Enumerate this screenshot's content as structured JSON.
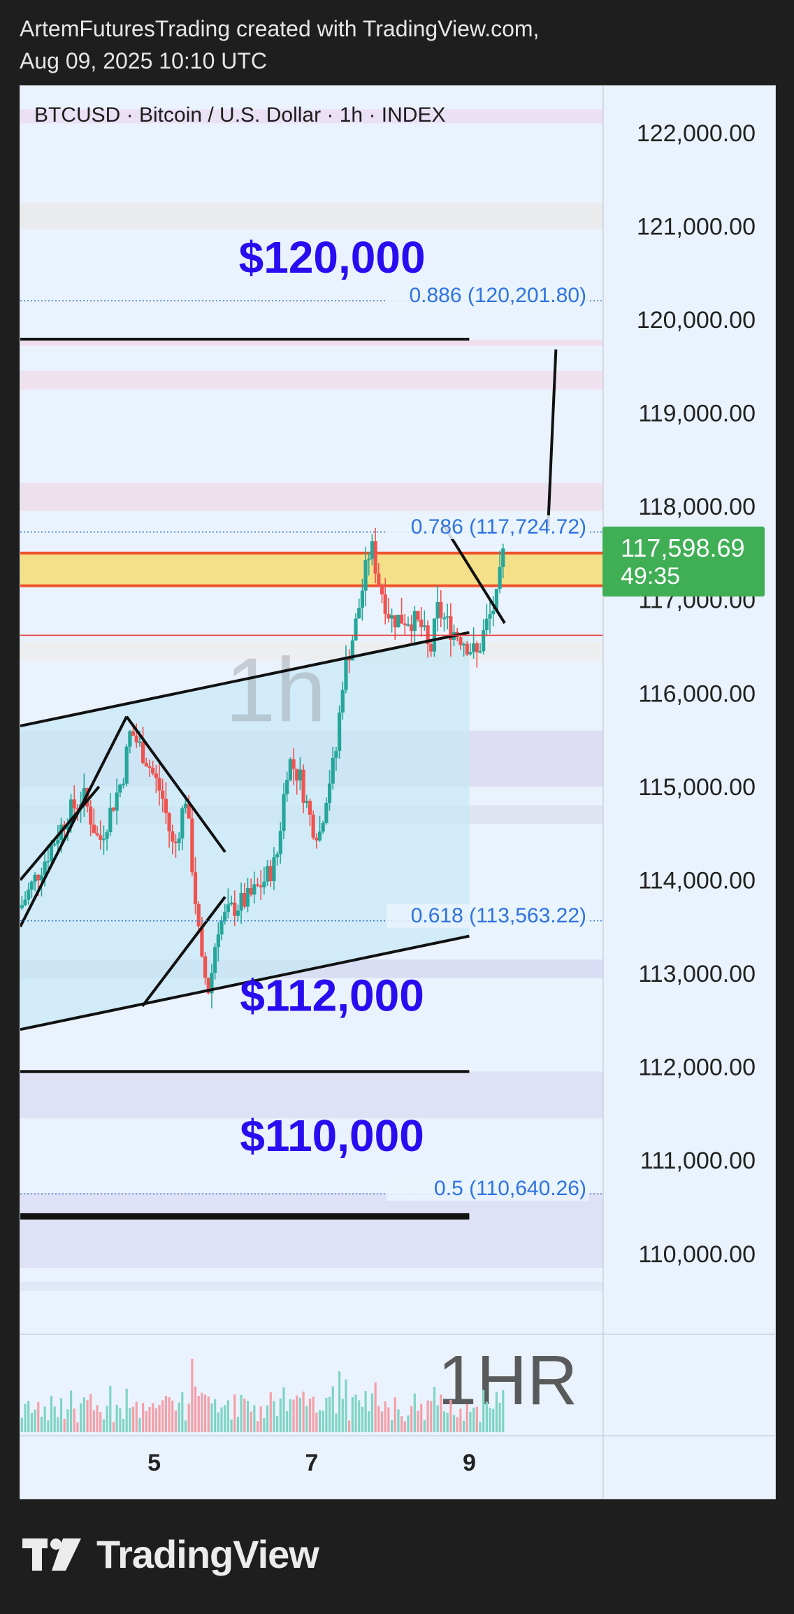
{
  "header": {
    "line1": "ArtemFuturesTrading created with TradingView.com,",
    "line2": "Aug 09, 2025 10:10 UTC"
  },
  "footer": {
    "brand": "TradingView"
  },
  "chart_data": {
    "type": "candlestick",
    "title": "BTCUSD · Bitcoin / U.S. Dollar · 1h · INDEX",
    "watermark": "1h",
    "volume_watermark": "1HR",
    "price_axis": {
      "ticks": [
        122000,
        121000,
        120000,
        119000,
        118000,
        117000,
        116000,
        115000,
        114000,
        113000,
        112000,
        111000,
        110000
      ],
      "tick_labels": [
        "122,000.00",
        "121,000.00",
        "120,000.00",
        "119,000.00",
        "118,000.00",
        "117,000.00",
        "116,000.00",
        "115,000.00",
        "114,000.00",
        "113,000.00",
        "112,000.00",
        "111,000.00",
        "110,000.00"
      ],
      "ylim": [
        109100,
        122500
      ]
    },
    "time_axis": {
      "labels": [
        "5",
        "7",
        "9"
      ],
      "positions": [
        5,
        7,
        9
      ],
      "xlim": [
        3.3,
        10.7
      ]
    },
    "last_price": {
      "value": "117,598.69",
      "countdown": "49:35",
      "color": "#4caf50"
    },
    "fib_levels": [
      {
        "ratio": "0.886",
        "price": 120201.8,
        "label": "0.886 (120,201.80)"
      },
      {
        "ratio": "0.786",
        "price": 117724.72,
        "label": "0.786 (117,724.72)"
      },
      {
        "ratio": "0.618",
        "price": 113563.22,
        "label": "0.618 (113,563.22)"
      },
      {
        "ratio": "0.5",
        "price": 110640.26,
        "label": "0.5 (110,640.26)"
      }
    ],
    "annotations": [
      {
        "text": "$120,000",
        "price": 120500
      },
      {
        "text": "$112,000",
        "price": 112600
      },
      {
        "text": "$110,000",
        "price": 111100
      }
    ],
    "horizontal_lines": [
      {
        "price": 119790,
        "t1": 3.3,
        "t2": 9.0,
        "color": "#111111"
      },
      {
        "price": 111950,
        "t1": 3.3,
        "t2": 9.0,
        "color": "#111111"
      },
      {
        "price": 110400,
        "t1": 3.3,
        "t2": 9.0,
        "color": "#111111",
        "bold": true
      },
      {
        "price": 116620,
        "t1": 3.3,
        "t2": 10.7,
        "color": "#e53935"
      }
    ],
    "resistance_zone": {
      "low": 117150,
      "high": 117500,
      "color": "#f5e08a",
      "border": "#f0522a"
    },
    "trend_lines": [
      {
        "t1": 3.3,
        "p1": 115650,
        "t2": 9.0,
        "p2": 116650
      },
      {
        "t1": 3.3,
        "p1": 112400,
        "t2": 9.0,
        "p2": 113400
      },
      {
        "t1": 4.65,
        "p1": 115750,
        "t2": 5.9,
        "p2": 114300
      },
      {
        "t1": 4.85,
        "p1": 112650,
        "t2": 5.9,
        "p2": 113820
      },
      {
        "t1": 3.3,
        "p1": 113500,
        "t2": 4.65,
        "p2": 115750
      },
      {
        "t1": 3.3,
        "p1": 114000,
        "t2": 4.3,
        "p2": 115000
      },
      {
        "t1": 8.65,
        "p1": 117830,
        "t2": 9.45,
        "p2": 116750
      },
      {
        "t1": 10.0,
        "p1": 117780,
        "t2": 10.1,
        "p2": 119680
      }
    ],
    "channel_fill": {
      "t1": 3.3,
      "t2": 9.0
    },
    "candles": {
      "start_t": 3.3,
      "end_t": 9.45,
      "anchors": [
        [
          3.3,
          113700
        ],
        [
          3.6,
          114200
        ],
        [
          3.9,
          114700
        ],
        [
          4.1,
          114900
        ],
        [
          4.3,
          114400
        ],
        [
          4.6,
          115100
        ],
        [
          4.7,
          115600
        ],
        [
          4.9,
          115300
        ],
        [
          5.1,
          114900
        ],
        [
          5.25,
          114300
        ],
        [
          5.4,
          114900
        ],
        [
          5.5,
          114000
        ],
        [
          5.6,
          113100
        ],
        [
          5.7,
          112800
        ],
        [
          5.8,
          113500
        ],
        [
          6.0,
          113700
        ],
        [
          6.2,
          113800
        ],
        [
          6.4,
          114000
        ],
        [
          6.55,
          114200
        ],
        [
          6.7,
          115300
        ],
        [
          6.85,
          115100
        ],
        [
          7.0,
          114600
        ],
        [
          7.1,
          114500
        ],
        [
          7.2,
          115000
        ],
        [
          7.3,
          115300
        ],
        [
          7.4,
          116200
        ],
        [
          7.55,
          116700
        ],
        [
          7.75,
          117600
        ],
        [
          7.85,
          117200
        ],
        [
          8.0,
          116800
        ],
        [
          8.25,
          116800
        ],
        [
          8.4,
          116700
        ],
        [
          8.5,
          116400
        ],
        [
          8.6,
          116900
        ],
        [
          8.75,
          116700
        ],
        [
          8.9,
          116600
        ],
        [
          9.1,
          116400
        ],
        [
          9.2,
          116700
        ],
        [
          9.35,
          117000
        ],
        [
          9.45,
          117600
        ]
      ]
    },
    "volume": {
      "start_t": 3.3,
      "end_t": 9.45
    }
  }
}
